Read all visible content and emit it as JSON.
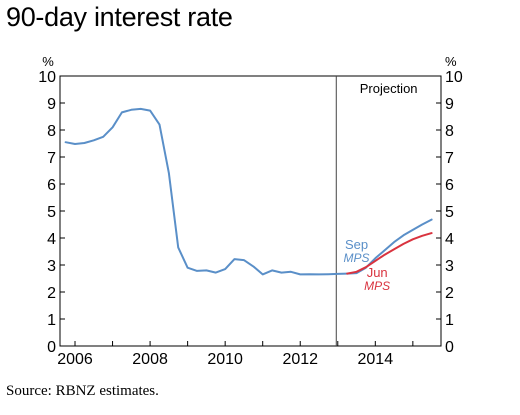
{
  "title": "90-day interest rate",
  "source": "Source: RBNZ estimates.",
  "chart_data": {
    "type": "line",
    "title": "90-day interest rate",
    "xlabel": "",
    "ylabel": "%",
    "ylabel_right": "%",
    "xlim": [
      2005.6,
      2015.75
    ],
    "ylim": [
      0,
      10
    ],
    "x_ticks": [
      2006,
      2008,
      2010,
      2012,
      2014
    ],
    "x_tick_labels": [
      "2006",
      "2008",
      "2010",
      "2012",
      "2014"
    ],
    "y_ticks": [
      0,
      1,
      2,
      3,
      4,
      5,
      6,
      7,
      8,
      9,
      10
    ],
    "y_tick_labels": [
      "0",
      "1",
      "2",
      "3",
      "4",
      "5",
      "6",
      "7",
      "8",
      "9",
      "10"
    ],
    "projection_start": 2012.96,
    "projection_label": "Projection",
    "grid": false,
    "series": [
      {
        "name": "Sep MPS",
        "label_main": "Sep",
        "label_sub": "MPS",
        "color": "#5a8fc8",
        "x": [
          2005.75,
          2006.0,
          2006.25,
          2006.5,
          2006.75,
          2007.0,
          2007.25,
          2007.5,
          2007.75,
          2008.0,
          2008.25,
          2008.5,
          2008.75,
          2009.0,
          2009.25,
          2009.5,
          2009.75,
          2010.0,
          2010.25,
          2010.5,
          2010.75,
          2011.0,
          2011.25,
          2011.5,
          2011.75,
          2012.0,
          2012.25,
          2012.5,
          2012.75,
          2013.0,
          2013.25,
          2013.5,
          2013.75,
          2014.0,
          2014.25,
          2014.5,
          2014.75,
          2015.0,
          2015.25,
          2015.5
        ],
        "y": [
          7.55,
          7.48,
          7.52,
          7.62,
          7.75,
          8.1,
          8.65,
          8.75,
          8.78,
          8.72,
          8.2,
          6.4,
          3.65,
          2.9,
          2.78,
          2.8,
          2.72,
          2.85,
          3.22,
          3.18,
          2.95,
          2.65,
          2.8,
          2.72,
          2.75,
          2.65,
          2.66,
          2.65,
          2.66,
          2.67,
          2.68,
          2.7,
          2.9,
          3.25,
          3.55,
          3.85,
          4.1,
          4.3,
          4.5,
          4.68
        ]
      },
      {
        "name": "Jun MPS",
        "label_main": "Jun",
        "label_sub": "MPS",
        "color": "#d9333f",
        "x": [
          2013.25,
          2013.5,
          2013.75,
          2014.0,
          2014.25,
          2014.5,
          2014.75,
          2015.0,
          2015.25,
          2015.5
        ],
        "y": [
          2.68,
          2.75,
          2.92,
          3.15,
          3.38,
          3.58,
          3.78,
          3.95,
          4.08,
          4.18
        ]
      }
    ]
  }
}
